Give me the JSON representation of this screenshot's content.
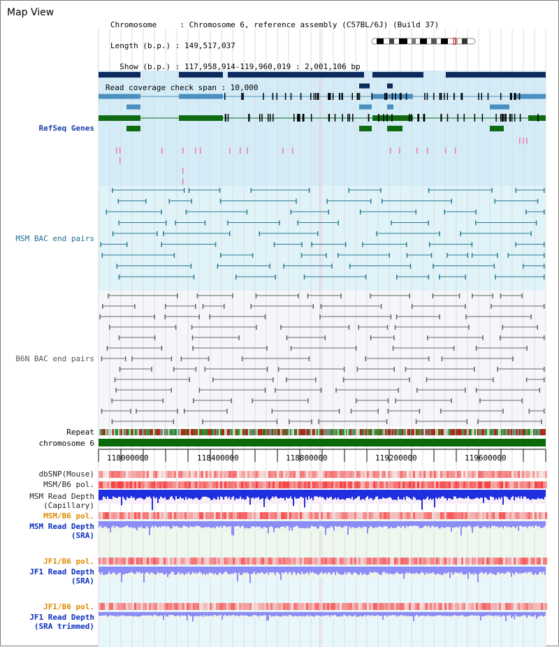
{
  "title": "Map View",
  "info": {
    "chromosome_line": "Chromosome     : Chromosome 6, reference assembly (C57BL/6J) (Build 37)",
    "length_line": "Length (b.p.) : 149,517,037",
    "show_line": "  Show (b.p.) : 117,958,914-119,960,019 : 2,001,106 bp",
    "read_cov_line": "Read coverage check span : 10,000"
  },
  "tracks": {
    "refseq": "RefSeq Genes",
    "msm_bac": "MSM BAC end pairs",
    "b6n_bac": "B6N BAC end pairs",
    "repeat": "Repeat",
    "chromosome": "chromosome 6",
    "dbsnp": "dbSNP(Mouse)",
    "msm_b6_pol": "MSM/B6 pol.",
    "msm_read_depth_cap": "MSM Read Depth\n(Capillary)",
    "msm_b6_pol_2": "MSM/B6 pol.",
    "msm_read_depth_sra": "MSM Read Depth\n(SRA)",
    "jf1_b6_pol": "JF1/B6 pol.",
    "jf1_read_depth_sra": "JF1 Read Depth\n(SRA)",
    "jf1_b6_pol_2": "JF1/B6 pol.",
    "jf1_read_depth_trim": "JF1 Read Depth\n(SRA trimmed)"
  },
  "axis": {
    "ticks": [
      "118000000",
      "118400000",
      "118800000",
      "119200000",
      "119600000"
    ]
  },
  "colors": {
    "gene_navy": "#0d2a5e",
    "gene_steel": "#4a8fbf",
    "gene_green": "#0f6b12",
    "msm_band": "#dff3f9",
    "gene_band": "#d3ecf7",
    "chrom_green": "#0a6a0a",
    "pol_red": "#ef4444",
    "depth_blue": "#1e2ee0",
    "depth_light": "#8b8cf5"
  }
}
